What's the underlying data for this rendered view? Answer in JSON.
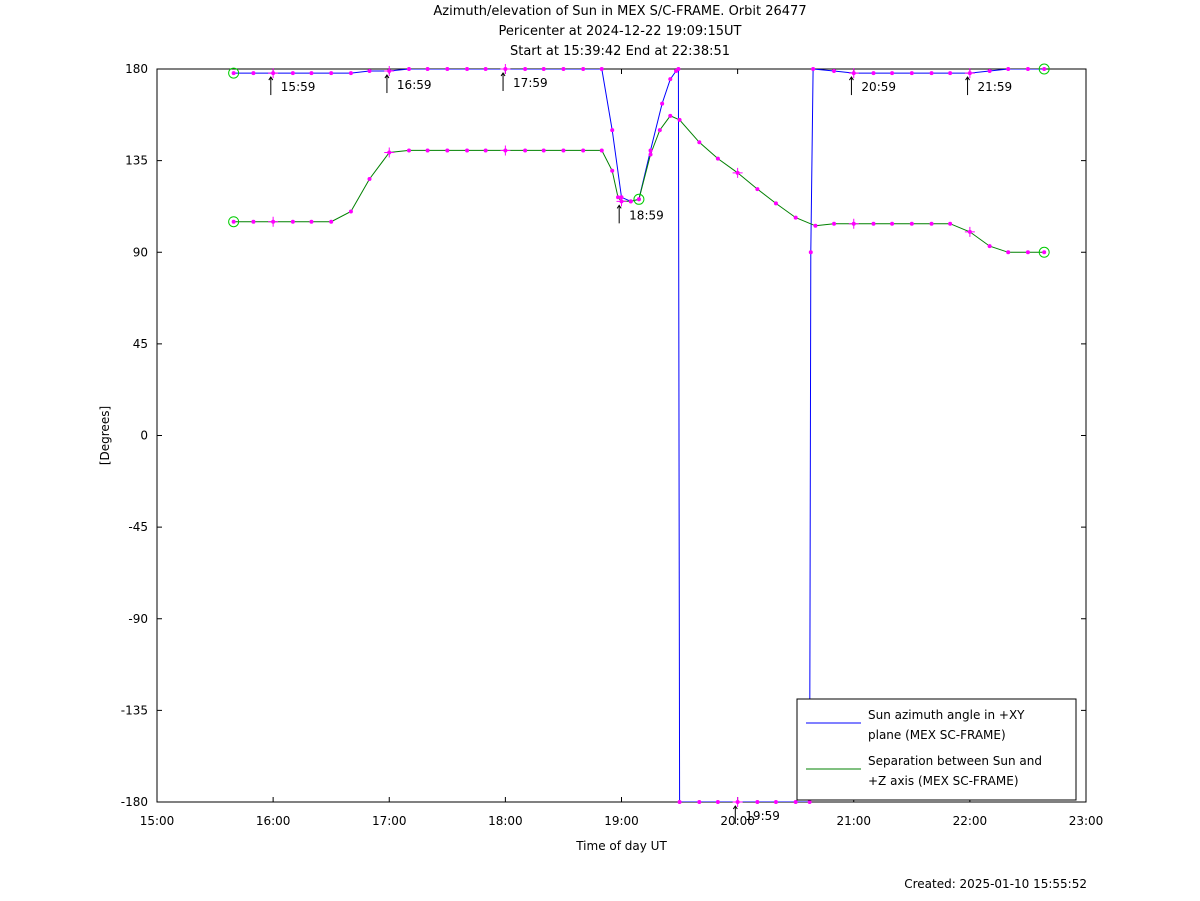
{
  "title": {
    "line1": "Azimuth/elevation of Sun in MEX S/C-FRAME.  Orbit 26477",
    "line2": "Pericenter at 2024-12-22 19:09:15UT",
    "line3": "Start at 15:39:42 End at 22:38:51"
  },
  "footer": {
    "created": "Created: 2025-01-10 15:55:52"
  },
  "chart_data": {
    "type": "line",
    "xlabel": "Time of day UT",
    "ylabel": "[Degrees]",
    "xlim": [
      15.0,
      23.0
    ],
    "ylim": [
      -180,
      180
    ],
    "x_ticks": [
      {
        "value": 15,
        "label": "15:00"
      },
      {
        "value": 16,
        "label": "16:00"
      },
      {
        "value": 17,
        "label": "17:00"
      },
      {
        "value": 18,
        "label": "18:00"
      },
      {
        "value": 19,
        "label": "19:00"
      },
      {
        "value": 20,
        "label": "20:00"
      },
      {
        "value": 21,
        "label": "21:00"
      },
      {
        "value": 22,
        "label": "22:00"
      },
      {
        "value": 23,
        "label": "23:00"
      }
    ],
    "y_ticks": [
      180,
      135,
      90,
      45,
      0,
      -45,
      -90,
      -135,
      -180
    ],
    "grid": false,
    "legend": "bottom-right",
    "series": [
      {
        "name_lines": [
          "Sun azimuth angle in +XY",
          "plane (MEX SC-FRAME)"
        ],
        "color": "#0000ff",
        "x": [
          15.66,
          15.83,
          16.0,
          16.17,
          16.33,
          16.5,
          16.67,
          16.83,
          17.0,
          17.17,
          17.33,
          17.5,
          17.67,
          17.83,
          18.0,
          18.17,
          18.33,
          18.5,
          18.67,
          18.83,
          18.92,
          19.0,
          19.08,
          19.15,
          19.25,
          19.35,
          19.42,
          19.47,
          19.49,
          19.5,
          19.67,
          19.83,
          20.0,
          20.17,
          20.33,
          20.5,
          20.62,
          20.63,
          20.65,
          20.83,
          21.0,
          21.17,
          21.33,
          21.5,
          21.67,
          21.83,
          22.0,
          22.17,
          22.33,
          22.5,
          22.64
        ],
        "y": [
          178,
          178,
          178,
          178,
          178,
          178,
          178,
          179,
          179,
          180,
          180,
          180,
          180,
          180,
          180,
          180,
          180,
          180,
          180,
          180,
          150,
          117,
          115,
          116,
          140,
          163,
          175,
          179,
          180,
          -180,
          -180,
          -180,
          -180,
          -180,
          -180,
          -180,
          -180,
          90,
          180,
          179,
          178,
          178,
          178,
          178,
          178,
          178,
          178,
          179,
          180,
          180,
          180
        ]
      },
      {
        "name_lines": [
          "Separation between Sun and",
          "+Z axis (MEX SC-FRAME)"
        ],
        "color": "#008000",
        "x": [
          15.66,
          15.83,
          16.0,
          16.17,
          16.33,
          16.5,
          16.67,
          16.83,
          17.0,
          17.17,
          17.33,
          17.5,
          17.67,
          17.83,
          18.0,
          18.17,
          18.33,
          18.5,
          18.67,
          18.83,
          18.92,
          18.97,
          19.0,
          19.08,
          19.15,
          19.25,
          19.33,
          19.42,
          19.5,
          19.67,
          19.83,
          20.0,
          20.17,
          20.33,
          20.5,
          20.67,
          20.83,
          21.0,
          21.17,
          21.33,
          21.5,
          21.67,
          21.83,
          22.0,
          22.17,
          22.33,
          22.5,
          22.64
        ],
        "y": [
          105,
          105,
          105,
          105,
          105,
          105,
          110,
          126,
          139,
          140,
          140,
          140,
          140,
          140,
          140,
          140,
          140,
          140,
          140,
          140,
          130,
          117,
          115,
          115,
          116,
          138,
          150,
          157,
          155,
          144,
          136,
          129,
          121,
          114,
          107,
          103,
          104,
          104,
          104,
          104,
          104,
          104,
          104,
          100,
          93,
          90,
          90,
          90
        ]
      }
    ],
    "annotations": [
      {
        "label": "15:59",
        "x": 15.98,
        "y": 178
      },
      {
        "label": "16:59",
        "x": 16.98,
        "y": 179
      },
      {
        "label": "17:59",
        "x": 17.98,
        "y": 180
      },
      {
        "label": "18:59",
        "x": 18.98,
        "y": 115
      },
      {
        "label": "19:59",
        "x": 19.98,
        "y": -180
      },
      {
        "label": "20:59",
        "x": 20.98,
        "y": 178
      },
      {
        "label": "21:59",
        "x": 21.98,
        "y": 178
      }
    ],
    "markers_circle": [
      {
        "x": 15.66,
        "y": 178
      },
      {
        "x": 15.66,
        "y": 105
      },
      {
        "x": 22.64,
        "y": 180
      },
      {
        "x": 22.64,
        "y": 90
      },
      {
        "x": 19.15,
        "y": 116
      }
    ],
    "markers_cross": [
      {
        "x": 16.0,
        "y": 105
      },
      {
        "x": 17.0,
        "y": 139
      },
      {
        "x": 18.0,
        "y": 140
      },
      {
        "x": 19.0,
        "y": 115
      },
      {
        "x": 20.0,
        "y": 129
      },
      {
        "x": 21.0,
        "y": 104
      },
      {
        "x": 22.0,
        "y": 100
      },
      {
        "x": 16.0,
        "y": 178
      },
      {
        "x": 17.0,
        "y": 179
      },
      {
        "x": 18.0,
        "y": 180
      },
      {
        "x": 20.0,
        "y": -180
      },
      {
        "x": 21.0,
        "y": 178
      },
      {
        "x": 22.0,
        "y": 178
      }
    ]
  }
}
